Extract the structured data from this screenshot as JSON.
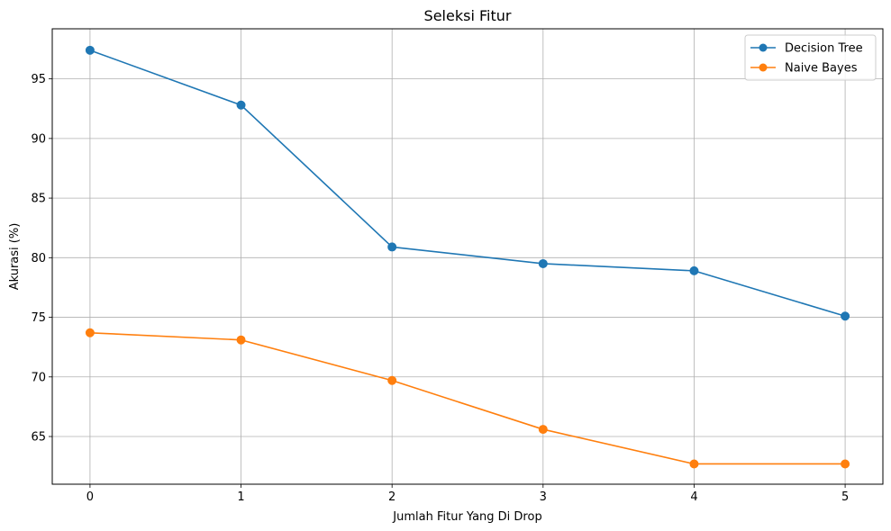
{
  "chart_data": {
    "type": "line",
    "title": "Seleksi Fitur",
    "xlabel": "Jumlah Fitur Yang Di Drop",
    "ylabel": "Akurasi (%)",
    "x": [
      0,
      1,
      2,
      3,
      4,
      5
    ],
    "xticks": [
      "0",
      "1",
      "2",
      "3",
      "4",
      "5"
    ],
    "yticks": [
      65,
      70,
      75,
      80,
      85,
      90,
      95
    ],
    "xlim": [
      -0.25,
      5.25
    ],
    "ylim": [
      61.0,
      99.2
    ],
    "grid": true,
    "legend_position": "top-right",
    "series": [
      {
        "name": "Decision Tree",
        "color": "#1f77b4",
        "marker": "circle",
        "values": [
          97.4,
          92.8,
          80.9,
          79.5,
          78.9,
          75.1
        ]
      },
      {
        "name": "Naive Bayes",
        "color": "#ff7f0e",
        "marker": "circle",
        "values": [
          73.7,
          73.1,
          69.7,
          65.6,
          62.7,
          62.7
        ]
      }
    ]
  }
}
